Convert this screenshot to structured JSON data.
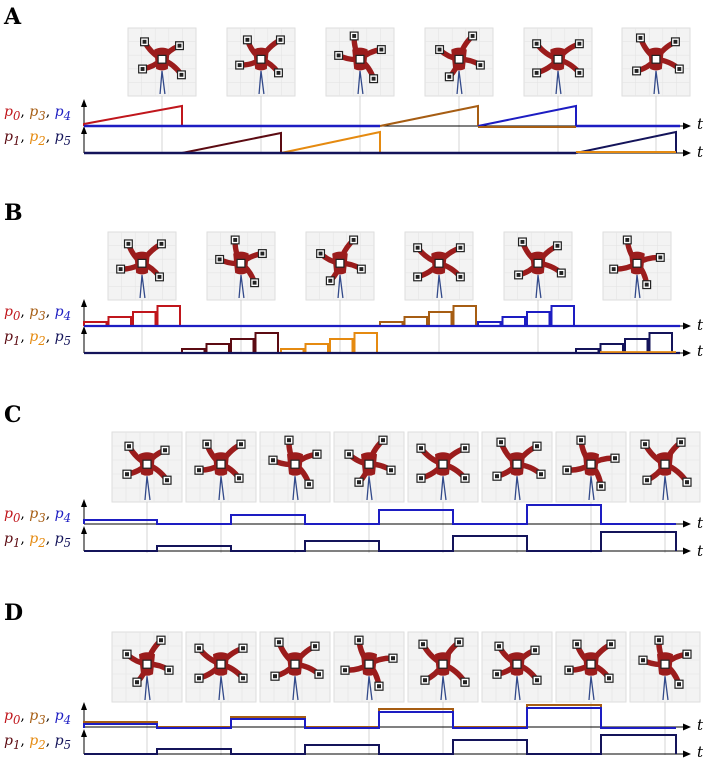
{
  "panels": [
    {
      "label": "A"
    },
    {
      "label": "B"
    },
    {
      "label": "C"
    },
    {
      "label": "D"
    }
  ],
  "signal_groups": {
    "upper": [
      {
        "text": "p",
        "sub": "0",
        "color": "#c0161c"
      },
      {
        "text": "p",
        "sub": "3",
        "color": "#a65d13"
      },
      {
        "text": "p",
        "sub": "4",
        "color": "#1d1dc2"
      }
    ],
    "lower": [
      {
        "text": "p",
        "sub": "1",
        "color": "#5c0b12"
      },
      {
        "text": "p",
        "sub": "2",
        "color": "#e58a10"
      },
      {
        "text": "p",
        "sub": "5",
        "color": "#14145a"
      }
    ]
  },
  "time_axis_label": "t",
  "colors": {
    "p0": "#c0161c",
    "p1": "#5c0b12",
    "p2": "#e58a10",
    "p3": "#a65d13",
    "p4": "#1d1dc2",
    "p5": "#14145a",
    "robot": "#9b1c1c",
    "marker": "#222222"
  }
}
